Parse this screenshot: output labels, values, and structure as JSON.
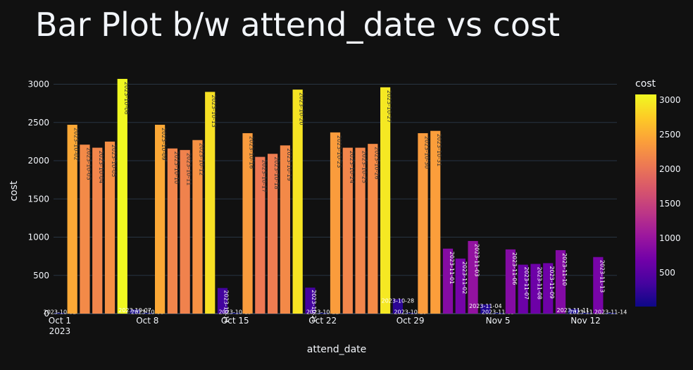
{
  "chart_data": {
    "type": "bar",
    "title": "Bar Plot b/w attend_date vs cost",
    "xlabel": "attend_date",
    "ylabel": "cost",
    "colorbar_title": "cost",
    "ylim": [
      0,
      3180
    ],
    "yticks": [
      0,
      500,
      1000,
      1500,
      2000,
      2500,
      3000
    ],
    "colorbar_range": [
      10,
      3080
    ],
    "colorbar_ticks": [
      500,
      1000,
      1500,
      2000,
      2500,
      3000
    ],
    "colorscale": [
      "#0d0887",
      "#46039f",
      "#7201a8",
      "#9c179e",
      "#bd3786",
      "#d8576b",
      "#ed7953",
      "#fb9f3a",
      "#fdca26",
      "#f0f921"
    ],
    "x_ticks": [
      {
        "date": "2023-10-01",
        "label": "Oct 1",
        "sublabel": "2023"
      },
      {
        "date": "2023-10-08",
        "label": "Oct 8"
      },
      {
        "date": "2023-10-15",
        "label": "Oct 15"
      },
      {
        "date": "2023-10-22",
        "label": "Oct 22"
      },
      {
        "date": "2023-10-29",
        "label": "Oct 29"
      },
      {
        "date": "2023-11-05",
        "label": "Nov 5"
      },
      {
        "date": "2023-11-12",
        "label": "Nov 12"
      }
    ],
    "x_start": "2023-09-30",
    "x_end": "2023-11-14",
    "bars": [
      {
        "date": "2023-10-01",
        "value": 10
      },
      {
        "date": "2023-10-02",
        "value": 2470
      },
      {
        "date": "2023-10-03",
        "value": 2210
      },
      {
        "date": "2023-10-04",
        "value": 2170
      },
      {
        "date": "2023-10-05",
        "value": 2250
      },
      {
        "date": "2023-10-06",
        "value": 3070
      },
      {
        "date": "2023-10-07",
        "value": 55
      },
      {
        "date": "2023-10-08",
        "value": 10
      },
      {
        "date": "2023-10-09",
        "value": 2470
      },
      {
        "date": "2023-10-10",
        "value": 2160
      },
      {
        "date": "2023-10-11",
        "value": 2140
      },
      {
        "date": "2023-10-12",
        "value": 2270
      },
      {
        "date": "2023-10-13",
        "value": 2900
      },
      {
        "date": "2023-10-14",
        "value": 335
      },
      {
        "date": "2023-10-15",
        "value": 10
      },
      {
        "date": "2023-10-16",
        "value": 2360
      },
      {
        "date": "2023-10-17",
        "value": 2050
      },
      {
        "date": "2023-10-18",
        "value": 2090
      },
      {
        "date": "2023-10-19",
        "value": 2200
      },
      {
        "date": "2023-10-20",
        "value": 2930
      },
      {
        "date": "2023-10-21",
        "value": 340
      },
      {
        "date": "2023-10-22",
        "value": 10
      },
      {
        "date": "2023-10-23",
        "value": 2370
      },
      {
        "date": "2023-10-24",
        "value": 2170
      },
      {
        "date": "2023-10-25",
        "value": 2170
      },
      {
        "date": "2023-10-26",
        "value": 2220
      },
      {
        "date": "2023-10-27",
        "value": 2960
      },
      {
        "date": "2023-10-28",
        "value": 190
      },
      {
        "date": "2023-10-29",
        "value": 10
      },
      {
        "date": "2023-10-30",
        "value": 2360
      },
      {
        "date": "2023-10-31",
        "value": 2390
      },
      {
        "date": "2023-11-01",
        "value": 850
      },
      {
        "date": "2023-11-02",
        "value": 720
      },
      {
        "date": "2023-11-03",
        "value": 950
      },
      {
        "date": "2023-11-04",
        "value": 120
      },
      {
        "date": "2023-11-05",
        "value": 10
      },
      {
        "date": "2023-11-06",
        "value": 840
      },
      {
        "date": "2023-11-07",
        "value": 640
      },
      {
        "date": "2023-11-08",
        "value": 650
      },
      {
        "date": "2023-11-09",
        "value": 660
      },
      {
        "date": "2023-11-10",
        "value": 830
      },
      {
        "date": "2023-11-11",
        "value": 60
      },
      {
        "date": "2023-11-12",
        "value": 10
      },
      {
        "date": "2023-11-13",
        "value": 740
      },
      {
        "date": "2023-11-14",
        "value": 10
      }
    ]
  }
}
